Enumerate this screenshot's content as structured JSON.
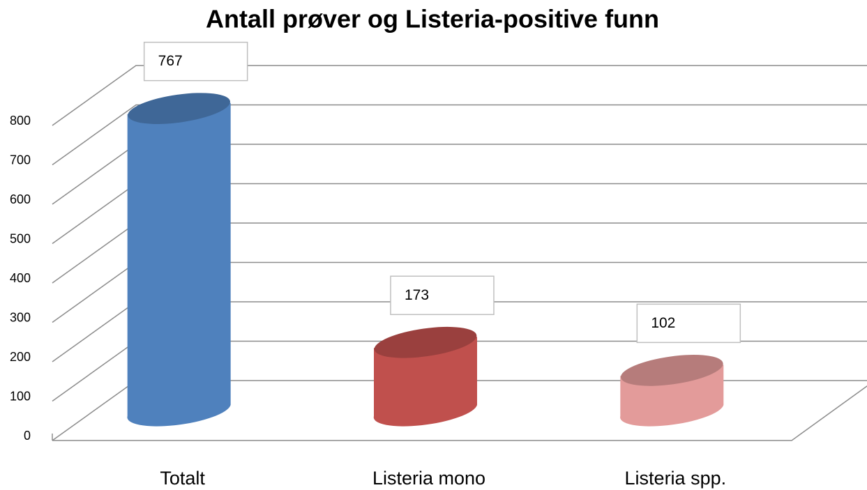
{
  "chart_data": {
    "type": "bar",
    "title": "Antall prøver og Listeria-positive funn",
    "categories": [
      "Totalt",
      "Listeria mono",
      "Listeria spp."
    ],
    "values": [
      767,
      173,
      102
    ],
    "colors": [
      "#4f81bd",
      "#c0504d",
      "#e39b9a"
    ],
    "ylim": [
      0,
      800
    ],
    "yticks": [
      0,
      100,
      200,
      300,
      400,
      500,
      600,
      700,
      800
    ],
    "grid": true
  }
}
